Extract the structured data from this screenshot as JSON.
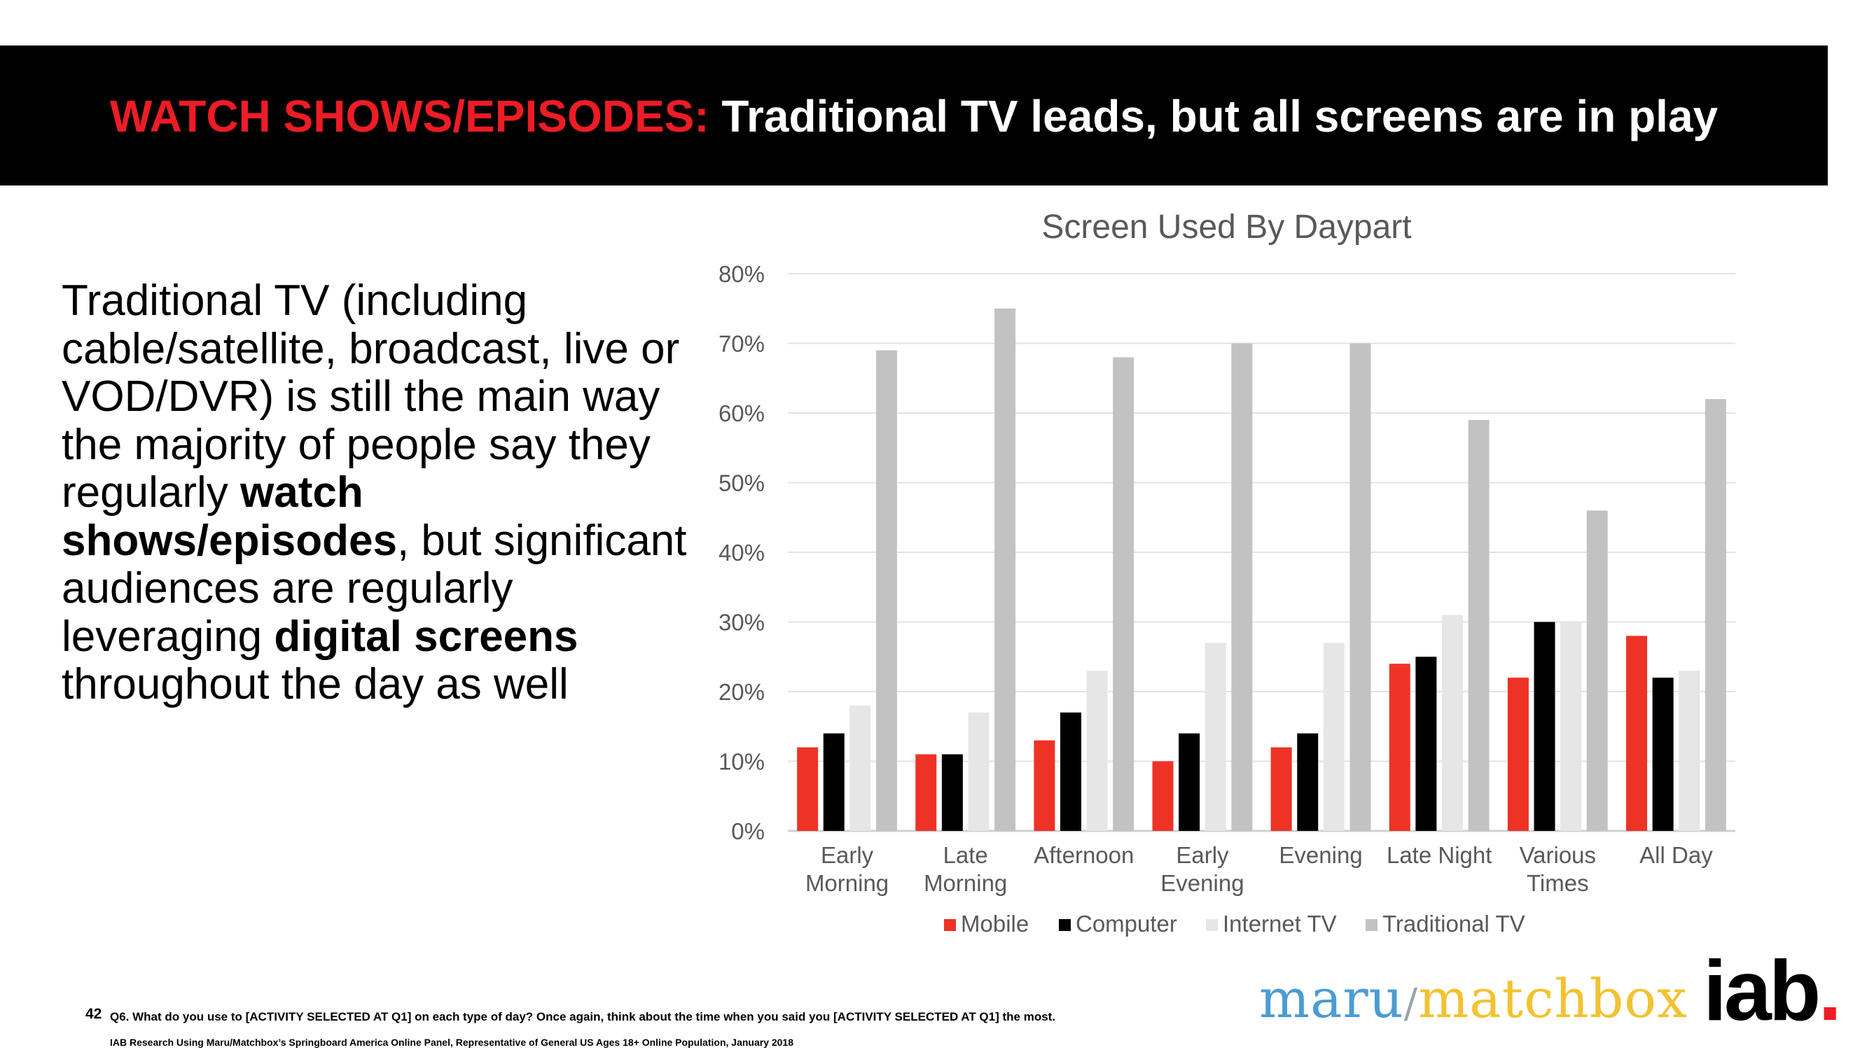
{
  "header": {
    "title_red": "WATCH SHOWS/EPISODES:",
    "title_white": " Traditional TV leads, but all screens are in play"
  },
  "body": {
    "p1": "Traditional TV (including cable/satellite, broadcast, live or VOD/DVR) is still the main way the majority of people say they regularly ",
    "b1": "watch shows/episodes",
    "p2": ", but significant audiences are regularly leveraging ",
    "b2": "digital screens",
    "p3": " throughout the day as well"
  },
  "chart_data": {
    "type": "bar",
    "title": "Screen Used By Daypart",
    "categories": [
      "Early\nMorning",
      "Late\nMorning",
      "Afternoon",
      "Early\nEvening",
      "Evening",
      "Late Night",
      "Various\nTimes",
      "All Day"
    ],
    "series": [
      {
        "name": "Mobile",
        "color": "#ee3226",
        "values": [
          12,
          11,
          13,
          10,
          12,
          24,
          22,
          28
        ]
      },
      {
        "name": "Computer",
        "color": "#000000",
        "values": [
          14,
          11,
          17,
          14,
          14,
          25,
          30,
          22
        ]
      },
      {
        "name": "Internet TV",
        "color": "#e6e6e6",
        "values": [
          18,
          17,
          23,
          27,
          27,
          31,
          30,
          23
        ]
      },
      {
        "name": "Traditional TV",
        "color": "#c2c2c2",
        "values": [
          69,
          75,
          68,
          70,
          70,
          59,
          46,
          62
        ]
      }
    ],
    "yticks": [
      "0%",
      "10%",
      "20%",
      "30%",
      "40%",
      "50%",
      "60%",
      "70%",
      "80%"
    ],
    "ylim": [
      0,
      80
    ],
    "xlabel": "",
    "ylabel": "",
    "legend": "bottom"
  },
  "footer": {
    "page_number": "42",
    "question": "Q6. What do you use to [ACTIVITY SELECTED AT Q1] on each type of day?  Once again, think about the time when you said you [ACTIVITY SELECTED AT Q1] the most.",
    "source": "IAB Research Using Maru/Matchbox’s Springboard America Online Panel, Representative of General US Ages 18+ Online Population, January 2018"
  },
  "logos": {
    "maru": "maru",
    "slash": "/",
    "matchbox": "matchbox",
    "iab": "iab",
    "iab_dot": "."
  }
}
